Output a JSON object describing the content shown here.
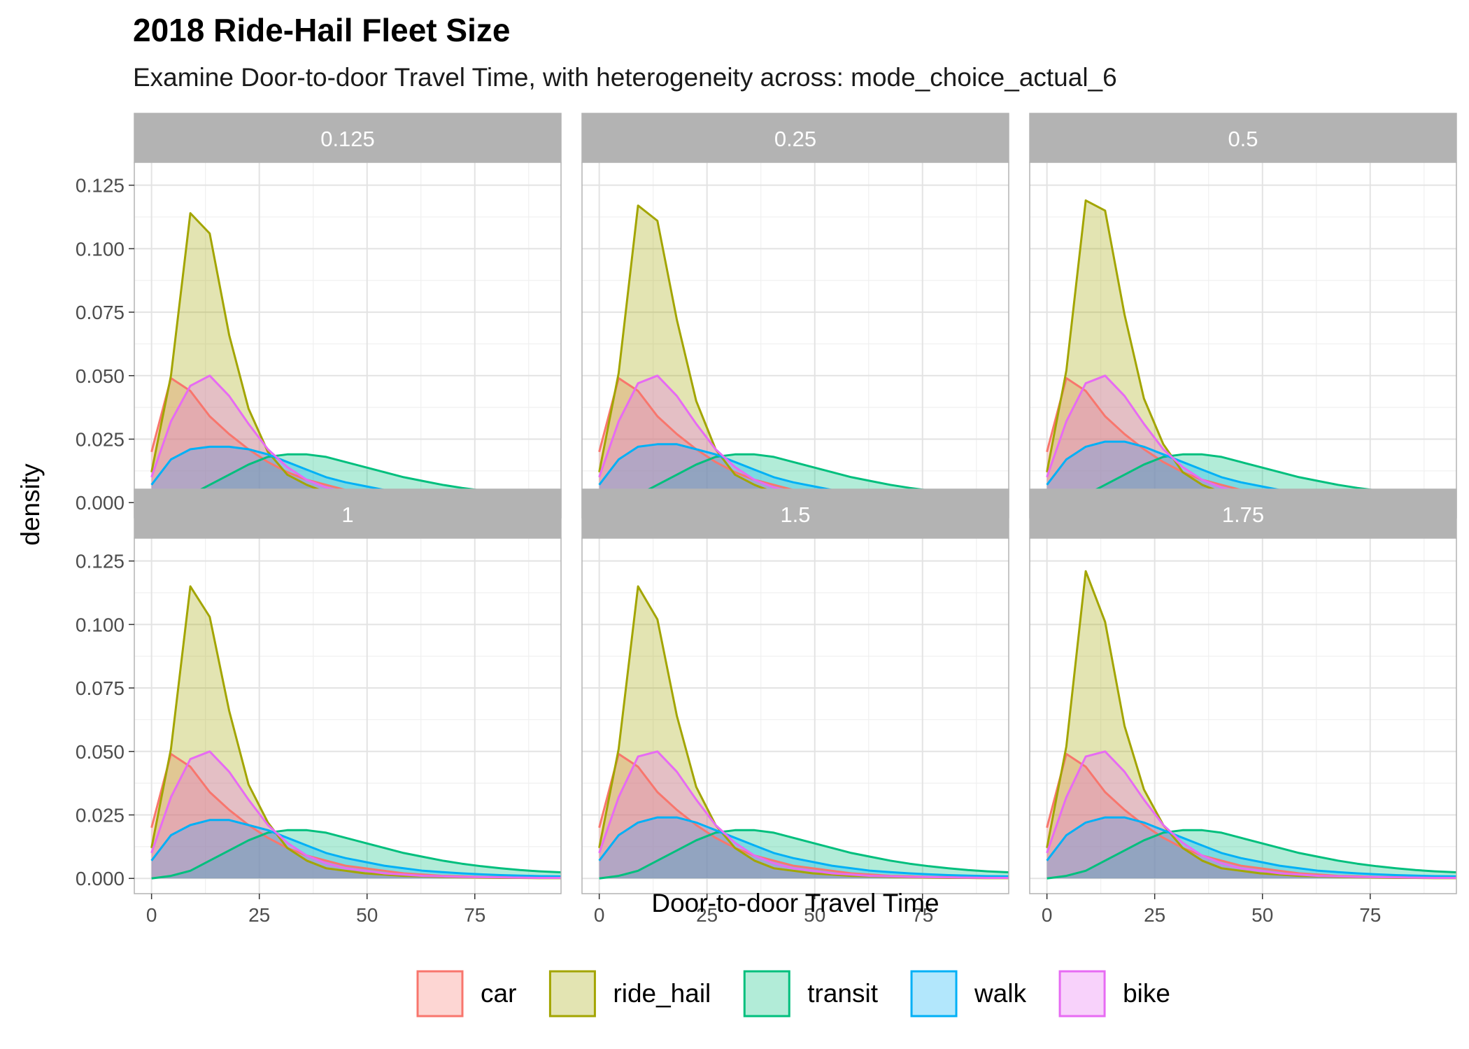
{
  "chart_data": {
    "type": "area",
    "title": "2018 Ride-Hail Fleet Size",
    "subtitle": "Examine Door-to-door Travel Time, with heterogeneity across: mode_choice_actual_6",
    "xlabel": "Door-to-door Travel Time",
    "ylabel": "density",
    "xlim": [
      -4,
      95
    ],
    "ylim": [
      -0.006,
      0.134
    ],
    "x_ticks": [
      0,
      25,
      50,
      75
    ],
    "y_ticks": [
      0.0,
      0.025,
      0.05,
      0.075,
      0.1,
      0.125
    ],
    "y_tick_labels": [
      "0.000",
      "0.025",
      "0.050",
      "0.075",
      "0.100",
      "0.125"
    ],
    "grid": true,
    "legend_position": "bottom",
    "x": [
      0,
      4.5,
      9,
      13.5,
      18,
      22.5,
      27,
      31.5,
      36,
      40.5,
      45,
      49.5,
      54,
      58.5,
      63,
      67.5,
      72,
      76.5,
      81,
      85.5,
      90,
      95
    ],
    "series_styles": [
      {
        "name": "car",
        "line": "#F8766D",
        "fill": "#F8766D"
      },
      {
        "name": "ride_hail",
        "line": "#A3A500",
        "fill": "#A3A500"
      },
      {
        "name": "transit",
        "line": "#00BF7D",
        "fill": "#00BF7D"
      },
      {
        "name": "walk",
        "line": "#00B0F6",
        "fill": "#00B0F6"
      },
      {
        "name": "bike",
        "line": "#E76BF3",
        "fill": "#E76BF3"
      }
    ],
    "panels": [
      {
        "label": "0.125",
        "series": [
          {
            "name": "car",
            "values": [
              0.02,
              0.049,
              0.044,
              0.034,
              0.027,
              0.021,
              0.016,
              0.012,
              0.009,
              0.007,
              0.005,
              0.004,
              0.003,
              0.002,
              0.0015,
              0.001,
              0.0008,
              0.0006,
              0.0005,
              0.0004,
              0.0003,
              0.0002
            ]
          },
          {
            "name": "ride_hail",
            "values": [
              0.012,
              0.05,
              0.114,
              0.106,
              0.066,
              0.037,
              0.02,
              0.011,
              0.007,
              0.004,
              0.003,
              0.002,
              0.0015,
              0.001,
              0.0008,
              0.0006,
              0.0004,
              0.0003,
              0.0002,
              0.0002,
              0.0001,
              0.0001
            ]
          },
          {
            "name": "transit",
            "values": [
              0.0,
              0.001,
              0.003,
              0.007,
              0.011,
              0.015,
              0.018,
              0.019,
              0.019,
              0.018,
              0.016,
              0.014,
              0.012,
              0.01,
              0.0085,
              0.007,
              0.0058,
              0.0048,
              0.004,
              0.0033,
              0.0028,
              0.0024
            ]
          },
          {
            "name": "walk",
            "values": [
              0.007,
              0.017,
              0.021,
              0.022,
              0.022,
              0.021,
              0.019,
              0.016,
              0.013,
              0.01,
              0.008,
              0.0065,
              0.005,
              0.004,
              0.003,
              0.0025,
              0.002,
              0.0016,
              0.0013,
              0.0011,
              0.0009,
              0.0008
            ]
          },
          {
            "name": "bike",
            "values": [
              0.01,
              0.032,
              0.046,
              0.05,
              0.042,
              0.031,
              0.021,
              0.014,
              0.009,
              0.006,
              0.004,
              0.003,
              0.002,
              0.0015,
              0.001,
              0.0008,
              0.0006,
              0.0005,
              0.0004,
              0.0003,
              0.0002,
              0.0002
            ]
          }
        ]
      },
      {
        "label": "0.25",
        "series": [
          {
            "name": "car",
            "values": [
              0.02,
              0.049,
              0.044,
              0.034,
              0.027,
              0.021,
              0.016,
              0.012,
              0.009,
              0.007,
              0.005,
              0.004,
              0.003,
              0.002,
              0.0015,
              0.001,
              0.0008,
              0.0006,
              0.0005,
              0.0004,
              0.0003,
              0.0002
            ]
          },
          {
            "name": "ride_hail",
            "values": [
              0.012,
              0.051,
              0.117,
              0.111,
              0.072,
              0.04,
              0.021,
              0.011,
              0.007,
              0.004,
              0.003,
              0.002,
              0.0015,
              0.001,
              0.0008,
              0.0006,
              0.0004,
              0.0003,
              0.0002,
              0.0002,
              0.0001,
              0.0001
            ]
          },
          {
            "name": "transit",
            "values": [
              0.0,
              0.001,
              0.003,
              0.007,
              0.011,
              0.015,
              0.018,
              0.019,
              0.019,
              0.018,
              0.016,
              0.014,
              0.012,
              0.01,
              0.0085,
              0.007,
              0.0058,
              0.0048,
              0.004,
              0.0033,
              0.0028,
              0.0024
            ]
          },
          {
            "name": "walk",
            "values": [
              0.007,
              0.017,
              0.022,
              0.023,
              0.023,
              0.021,
              0.019,
              0.016,
              0.013,
              0.01,
              0.008,
              0.0065,
              0.005,
              0.004,
              0.003,
              0.0025,
              0.002,
              0.0016,
              0.0013,
              0.0011,
              0.0009,
              0.0008
            ]
          },
          {
            "name": "bike",
            "values": [
              0.01,
              0.032,
              0.047,
              0.05,
              0.042,
              0.031,
              0.021,
              0.014,
              0.009,
              0.006,
              0.004,
              0.003,
              0.002,
              0.0015,
              0.001,
              0.0008,
              0.0006,
              0.0005,
              0.0004,
              0.0003,
              0.0002,
              0.0002
            ]
          }
        ]
      },
      {
        "label": "0.5",
        "series": [
          {
            "name": "car",
            "values": [
              0.02,
              0.049,
              0.044,
              0.034,
              0.027,
              0.021,
              0.016,
              0.012,
              0.009,
              0.007,
              0.005,
              0.004,
              0.003,
              0.002,
              0.0015,
              0.001,
              0.0008,
              0.0006,
              0.0005,
              0.0004,
              0.0003,
              0.0002
            ]
          },
          {
            "name": "ride_hail",
            "values": [
              0.012,
              0.052,
              0.119,
              0.115,
              0.074,
              0.041,
              0.023,
              0.012,
              0.007,
              0.004,
              0.003,
              0.002,
              0.0015,
              0.001,
              0.0008,
              0.0006,
              0.0004,
              0.0003,
              0.0002,
              0.0002,
              0.0001,
              0.0001
            ]
          },
          {
            "name": "transit",
            "values": [
              0.0,
              0.001,
              0.003,
              0.007,
              0.011,
              0.015,
              0.018,
              0.019,
              0.019,
              0.018,
              0.016,
              0.014,
              0.012,
              0.01,
              0.0085,
              0.007,
              0.0058,
              0.0048,
              0.004,
              0.0033,
              0.0028,
              0.0024
            ]
          },
          {
            "name": "walk",
            "values": [
              0.007,
              0.017,
              0.022,
              0.024,
              0.024,
              0.022,
              0.019,
              0.016,
              0.013,
              0.01,
              0.008,
              0.0065,
              0.005,
              0.004,
              0.003,
              0.0025,
              0.002,
              0.0016,
              0.0013,
              0.0011,
              0.0009,
              0.0008
            ]
          },
          {
            "name": "bike",
            "values": [
              0.01,
              0.032,
              0.047,
              0.05,
              0.042,
              0.031,
              0.021,
              0.014,
              0.009,
              0.006,
              0.004,
              0.003,
              0.002,
              0.0015,
              0.001,
              0.0008,
              0.0006,
              0.0005,
              0.0004,
              0.0003,
              0.0002,
              0.0002
            ]
          }
        ]
      },
      {
        "label": "1",
        "series": [
          {
            "name": "car",
            "values": [
              0.02,
              0.049,
              0.044,
              0.034,
              0.027,
              0.021,
              0.016,
              0.012,
              0.009,
              0.007,
              0.005,
              0.004,
              0.003,
              0.002,
              0.0015,
              0.001,
              0.0008,
              0.0006,
              0.0005,
              0.0004,
              0.0003,
              0.0002
            ]
          },
          {
            "name": "ride_hail",
            "values": [
              0.012,
              0.051,
              0.115,
              0.103,
              0.066,
              0.037,
              0.022,
              0.012,
              0.007,
              0.004,
              0.003,
              0.002,
              0.0015,
              0.001,
              0.0008,
              0.0006,
              0.0004,
              0.0003,
              0.0002,
              0.0002,
              0.0001,
              0.0001
            ]
          },
          {
            "name": "transit",
            "values": [
              0.0,
              0.001,
              0.003,
              0.007,
              0.011,
              0.015,
              0.018,
              0.019,
              0.019,
              0.018,
              0.016,
              0.014,
              0.012,
              0.01,
              0.0085,
              0.007,
              0.0058,
              0.0048,
              0.004,
              0.0033,
              0.0028,
              0.0024
            ]
          },
          {
            "name": "walk",
            "values": [
              0.007,
              0.017,
              0.021,
              0.023,
              0.023,
              0.021,
              0.019,
              0.016,
              0.013,
              0.01,
              0.008,
              0.0065,
              0.005,
              0.004,
              0.003,
              0.0025,
              0.002,
              0.0016,
              0.0013,
              0.0011,
              0.0009,
              0.0008
            ]
          },
          {
            "name": "bike",
            "values": [
              0.01,
              0.032,
              0.047,
              0.05,
              0.042,
              0.031,
              0.021,
              0.014,
              0.009,
              0.006,
              0.004,
              0.003,
              0.002,
              0.0015,
              0.001,
              0.0008,
              0.0006,
              0.0005,
              0.0004,
              0.0003,
              0.0002,
              0.0002
            ]
          }
        ]
      },
      {
        "label": "1.5",
        "series": [
          {
            "name": "car",
            "values": [
              0.02,
              0.049,
              0.044,
              0.034,
              0.027,
              0.021,
              0.016,
              0.012,
              0.009,
              0.007,
              0.005,
              0.004,
              0.003,
              0.002,
              0.0015,
              0.001,
              0.0008,
              0.0006,
              0.0005,
              0.0004,
              0.0003,
              0.0002
            ]
          },
          {
            "name": "ride_hail",
            "values": [
              0.012,
              0.051,
              0.115,
              0.102,
              0.064,
              0.036,
              0.021,
              0.012,
              0.007,
              0.004,
              0.003,
              0.002,
              0.0015,
              0.001,
              0.0008,
              0.0006,
              0.0004,
              0.0003,
              0.0002,
              0.0002,
              0.0001,
              0.0001
            ]
          },
          {
            "name": "transit",
            "values": [
              0.0,
              0.001,
              0.003,
              0.007,
              0.011,
              0.015,
              0.018,
              0.019,
              0.019,
              0.018,
              0.016,
              0.014,
              0.012,
              0.01,
              0.0085,
              0.007,
              0.0058,
              0.0048,
              0.004,
              0.0033,
              0.0028,
              0.0024
            ]
          },
          {
            "name": "walk",
            "values": [
              0.007,
              0.017,
              0.022,
              0.024,
              0.024,
              0.022,
              0.019,
              0.016,
              0.013,
              0.01,
              0.008,
              0.0065,
              0.005,
              0.004,
              0.003,
              0.0025,
              0.002,
              0.0016,
              0.0013,
              0.0011,
              0.0009,
              0.0008
            ]
          },
          {
            "name": "bike",
            "values": [
              0.01,
              0.032,
              0.048,
              0.05,
              0.042,
              0.031,
              0.021,
              0.014,
              0.009,
              0.006,
              0.004,
              0.003,
              0.002,
              0.0015,
              0.001,
              0.0008,
              0.0006,
              0.0005,
              0.0004,
              0.0003,
              0.0002,
              0.0002
            ]
          }
        ]
      },
      {
        "label": "1.75",
        "series": [
          {
            "name": "car",
            "values": [
              0.02,
              0.049,
              0.044,
              0.034,
              0.027,
              0.021,
              0.016,
              0.012,
              0.009,
              0.007,
              0.005,
              0.004,
              0.003,
              0.002,
              0.0015,
              0.001,
              0.0008,
              0.0006,
              0.0005,
              0.0004,
              0.0003,
              0.0002
            ]
          },
          {
            "name": "ride_hail",
            "values": [
              0.012,
              0.052,
              0.121,
              0.101,
              0.06,
              0.035,
              0.021,
              0.012,
              0.007,
              0.004,
              0.003,
              0.002,
              0.0015,
              0.001,
              0.0008,
              0.0006,
              0.0004,
              0.0003,
              0.0002,
              0.0002,
              0.0001,
              0.0001
            ]
          },
          {
            "name": "transit",
            "values": [
              0.0,
              0.001,
              0.003,
              0.007,
              0.011,
              0.015,
              0.018,
              0.019,
              0.019,
              0.018,
              0.016,
              0.014,
              0.012,
              0.01,
              0.0085,
              0.007,
              0.0058,
              0.0048,
              0.004,
              0.0033,
              0.0028,
              0.0024
            ]
          },
          {
            "name": "walk",
            "values": [
              0.007,
              0.017,
              0.022,
              0.024,
              0.024,
              0.022,
              0.019,
              0.016,
              0.013,
              0.01,
              0.008,
              0.0065,
              0.005,
              0.004,
              0.003,
              0.0025,
              0.002,
              0.0016,
              0.0013,
              0.0011,
              0.0009,
              0.0008
            ]
          },
          {
            "name": "bike",
            "values": [
              0.01,
              0.032,
              0.048,
              0.05,
              0.042,
              0.031,
              0.021,
              0.014,
              0.009,
              0.006,
              0.004,
              0.003,
              0.002,
              0.0015,
              0.001,
              0.0008,
              0.0006,
              0.0005,
              0.0004,
              0.0003,
              0.0002,
              0.0002
            ]
          }
        ]
      }
    ]
  }
}
